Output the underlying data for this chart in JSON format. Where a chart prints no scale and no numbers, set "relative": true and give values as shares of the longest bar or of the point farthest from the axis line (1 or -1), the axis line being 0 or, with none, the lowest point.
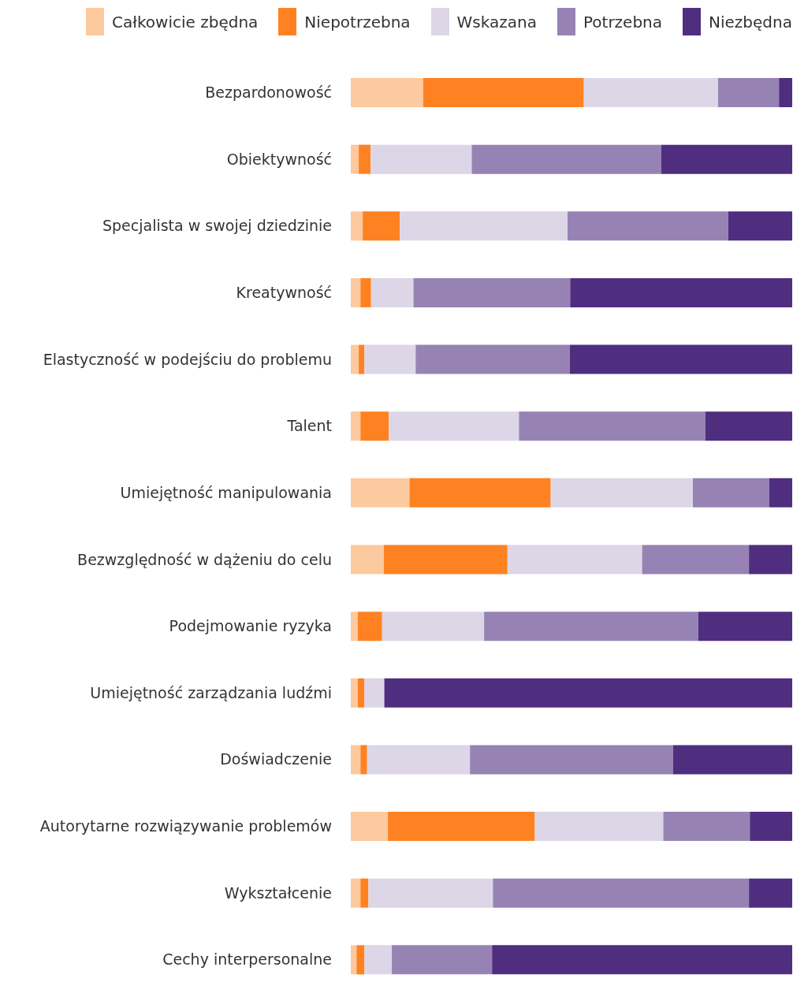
{
  "chart_data": {
    "type": "bar",
    "orientation": "horizontal",
    "stacked": true,
    "relative": true,
    "legend": "top",
    "grid": false,
    "categories": [
      "Bezpardonowość",
      "Obiektywność",
      "Specjalista w swojej dziedzinie",
      "Kreatywność",
      "Elastyczność w podejściu do problemu",
      "Talent",
      "Umiejętność manipulowania",
      "Bezwzględność w dążeniu do celu",
      "Podejmowanie ryzyka",
      "Umiejętność zarządzania ludźmi",
      "Doświadczenie",
      "Autorytarne rozwiązywanie problemów",
      "Wykształcenie",
      "Cechy interpersonalne"
    ],
    "series": [
      {
        "name": "Całkowicie zbędna",
        "color": "#fdc99f",
        "values": [
          0.164,
          0.018,
          0.027,
          0.022,
          0.018,
          0.022,
          0.133,
          0.075,
          0.016,
          0.016,
          0.022,
          0.084,
          0.022,
          0.013
        ]
      },
      {
        "name": "Niepotrzebna",
        "color": "#fe8222",
        "values": [
          0.364,
          0.027,
          0.084,
          0.024,
          0.013,
          0.064,
          0.32,
          0.28,
          0.055,
          0.015,
          0.015,
          0.333,
          0.018,
          0.018
        ]
      },
      {
        "name": "Wskazana",
        "color": "#ddd6e7",
        "values": [
          0.304,
          0.229,
          0.38,
          0.096,
          0.116,
          0.295,
          0.322,
          0.305,
          0.231,
          0.045,
          0.233,
          0.291,
          0.282,
          0.062
        ]
      },
      {
        "name": "Potrzebna",
        "color": "#9683b4",
        "values": [
          0.138,
          0.429,
          0.364,
          0.355,
          0.349,
          0.422,
          0.173,
          0.242,
          0.485,
          0,
          0.46,
          0.196,
          0.58,
          0.227
        ]
      },
      {
        "name": "Niezbędna",
        "color": "#4f2e80",
        "values": [
          0.03,
          0.297,
          0.145,
          0.503,
          0.504,
          0.197,
          0.052,
          0.098,
          0.213,
          0.924,
          0.27,
          0.096,
          0.098,
          0.68
        ]
      }
    ]
  }
}
